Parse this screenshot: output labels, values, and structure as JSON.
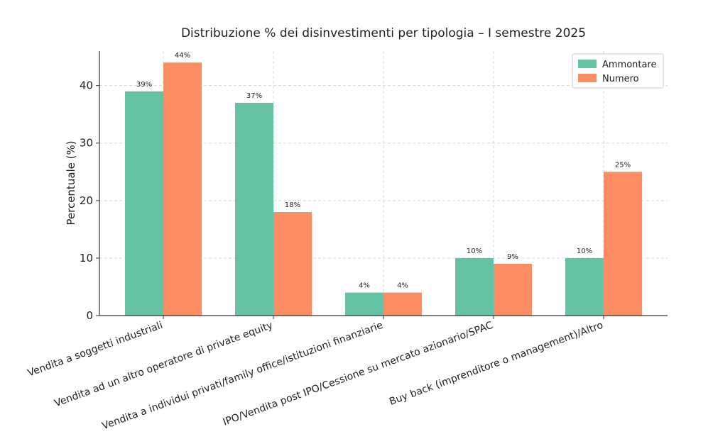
{
  "chart_data": {
    "type": "bar",
    "title": "Distribuzione % dei disinvestimenti per tipologia – I semestre 2025",
    "ylabel": "Percentuale (%)",
    "xlabel": "",
    "ylim": [
      0,
      46
    ],
    "yticks": [
      0,
      10,
      20,
      30,
      40
    ],
    "grid": true,
    "legend_position": "top-right",
    "categories": [
      "Vendita a soggetti industriali",
      "Vendita ad un altro operatore di private equity",
      "Vendita a individui privati/family office/istituzioni finanziarie",
      "IPO/Vendita post IPO/Cessione su mercato azionario/SPAC",
      "Buy back (imprenditore o management)/Altro"
    ],
    "series": [
      {
        "name": "Ammontare",
        "color": "#66c2a5",
        "values": [
          39,
          37,
          4,
          10,
          10
        ],
        "labels": [
          "39%",
          "37%",
          "4%",
          "10%",
          "10%"
        ]
      },
      {
        "name": "Numero",
        "color": "#fc8d62",
        "values": [
          44,
          18,
          4,
          9,
          25
        ],
        "labels": [
          "44%",
          "18%",
          "4%",
          "9%",
          "25%"
        ]
      }
    ]
  }
}
